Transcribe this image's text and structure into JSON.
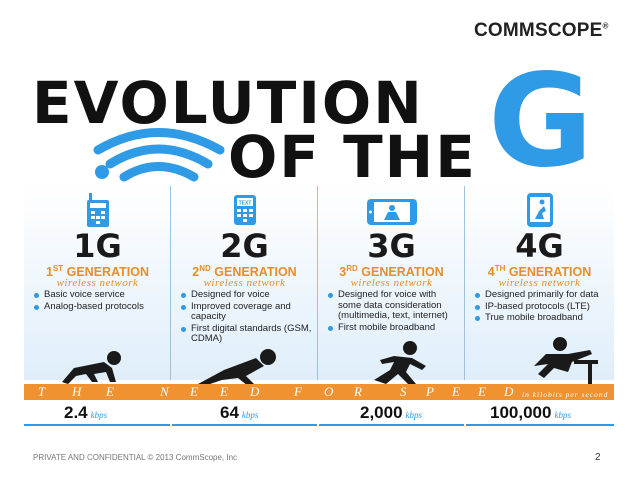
{
  "logo": {
    "text": "COMMSCOPE",
    "mark": "®"
  },
  "title": {
    "line1": "EVOLUTION",
    "line2": "OF THE",
    "big_letter": "G"
  },
  "columns": [
    {
      "gen": "1G",
      "ord_num": "1",
      "ord_sup": "ST",
      "ord_word": " GENERATION",
      "subtitle": "wireless network",
      "bullets": [
        "Basic voice service",
        "Analog-based protocols"
      ],
      "rate": "2.4",
      "unit": "kbps"
    },
    {
      "gen": "2G",
      "ord_num": "2",
      "ord_sup": "ND",
      "ord_word": " GENERATION",
      "subtitle": "wireless network",
      "bullets": [
        "Designed for voice",
        "Improved coverage and capacity",
        "First digital standards (GSM, CDMA)"
      ],
      "rate": "64",
      "unit": "kbps",
      "phone_text": "TEXT"
    },
    {
      "gen": "3G",
      "ord_num": "3",
      "ord_sup": "RD",
      "ord_word": " GENERATION",
      "subtitle": "wireless network",
      "bullets": [
        "Designed for voice with some data consideration (multimedia, text, internet)",
        "First mobile broadband"
      ],
      "rate": "2,000",
      "unit": "kbps"
    },
    {
      "gen": "4G",
      "ord_num": "4",
      "ord_sup": "TH",
      "ord_word": " GENERATION",
      "subtitle": "wireless network",
      "bullets": [
        "Designed primarily for data",
        "IP-based protocols (LTE)",
        "True mobile broadband"
      ],
      "rate": "100,000",
      "unit": "kbps"
    }
  ],
  "speed_bar": {
    "letters": [
      "T",
      "H",
      "E",
      "N",
      "E",
      "E",
      "D",
      "F",
      "O",
      "R",
      "S",
      "P",
      "E",
      "E",
      "D"
    ],
    "note": "in kilobits per second"
  },
  "footer": {
    "text": "PRIVATE AND CONFIDENTIAL © 2013  CommScope, Inc",
    "page": "2"
  },
  "colors": {
    "accent_blue": "#2f9ae5",
    "accent_orange": "#f0922f",
    "title_black": "#111111"
  }
}
